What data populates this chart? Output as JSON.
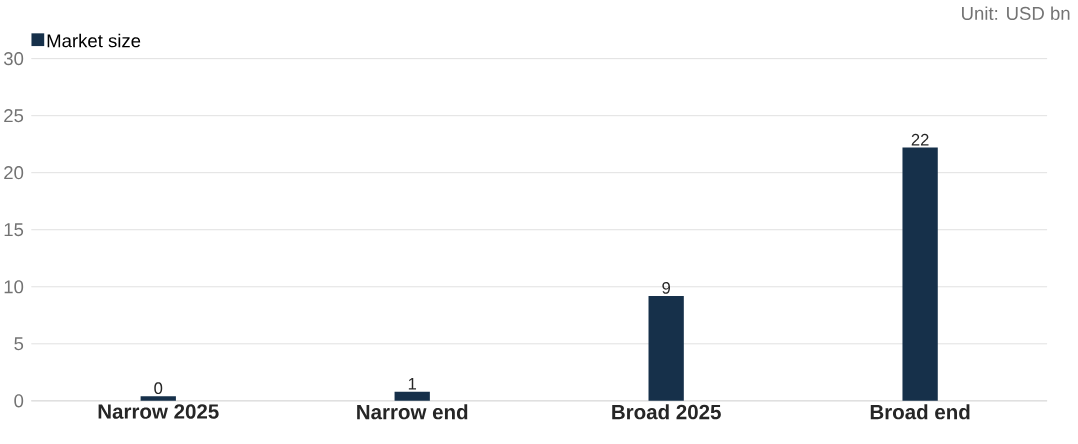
{
  "chart_data": {
    "type": "bar",
    "categories": [
      "Narrow 2025",
      "Narrow end",
      "Broad 2025",
      "Broad end"
    ],
    "series": [
      {
        "name": "Market size",
        "color": "#16304a",
        "values": [
          0.4,
          0.8,
          9.2,
          22.2
        ],
        "value_labels": [
          "0",
          "1",
          "9",
          "22"
        ]
      }
    ],
    "ylim": [
      0,
      30
    ],
    "yticks": [
      0,
      5,
      10,
      15,
      20,
      25,
      30
    ],
    "grid": "y",
    "legend": "top left",
    "annotations": [
      "Unit: USD bn"
    ]
  }
}
